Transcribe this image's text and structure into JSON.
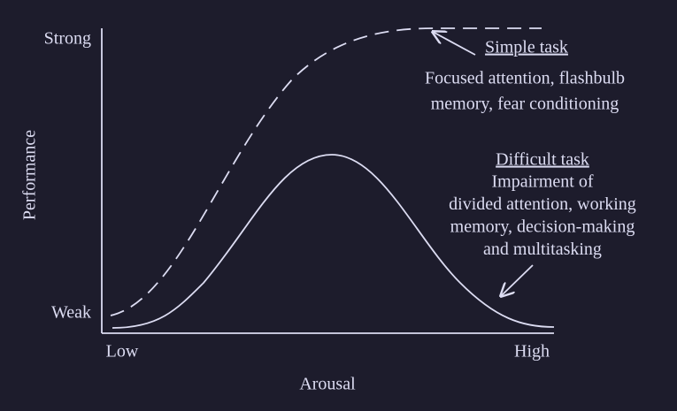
{
  "axes": {
    "y_title": "Performance",
    "y_top": "Strong",
    "y_bottom": "Weak",
    "x_title": "Arousal",
    "x_left": "Low",
    "x_right": "High"
  },
  "annotations": {
    "simple": {
      "title": "Simple task",
      "lines": [
        "Focused attention, flashbulb",
        "memory, fear conditioning"
      ]
    },
    "difficult": {
      "title": "Difficult task",
      "lines": [
        "Impairment of",
        "divided attention, working",
        "memory, decision-making",
        "and multitasking"
      ]
    }
  }
}
